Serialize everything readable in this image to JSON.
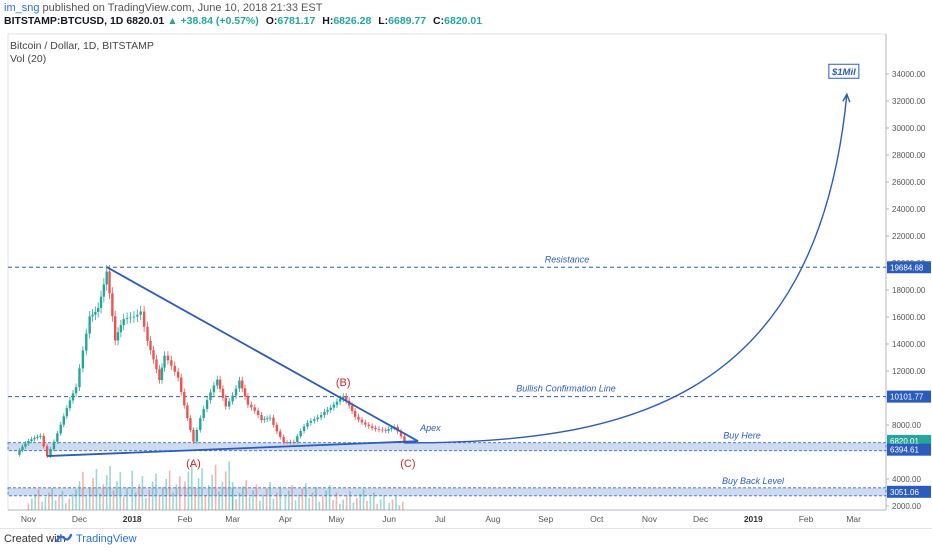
{
  "header": {
    "user": "im_sng",
    "published": "published on TradingView.com, June 10, 2018 21:33 EST",
    "symbol": "BITSTAMP:BTCUSD, 1D",
    "last": "6820.01",
    "arrow": "▲",
    "change": "+38.84 (+0.57%)",
    "o_label": "O:",
    "o_value": "6781.17",
    "h_label": "H:",
    "h_value": "6826.28",
    "l_label": "L:",
    "l_value": "6689.77",
    "c_label": "C:",
    "c_value": "6820.01"
  },
  "legend": {
    "title": "Bitcoin / Dollar, 1D, BITSTAMP",
    "vol": "Vol (20)"
  },
  "footer": {
    "created": "Created with",
    "brand": "TradingView",
    "logo_icon": "tradingview-logo-icon"
  },
  "chart_data": {
    "type": "candlestick",
    "title": "Bitcoin / Dollar, 1D, BITSTAMP",
    "x_tick_labels": [
      "Nov",
      "Dec",
      "2018",
      "Feb",
      "Mar",
      "Apr",
      "May",
      "Jun",
      "Jul",
      "Aug",
      "Sep",
      "Oct",
      "Nov",
      "Dec",
      "2019",
      "Feb",
      "Mar"
    ],
    "y_tick_values": [
      2000,
      4000,
      8000,
      10000,
      12000,
      14000,
      16000,
      18000,
      20000,
      22000,
      24000,
      26000,
      28000,
      30000,
      32000,
      34000
    ],
    "y_tick_labels": [
      "2000.00",
      "4000.00",
      "8000.00",
      "10000.00",
      "12000.00",
      "14000.00",
      "16000.00",
      "18000.00",
      "20000.00",
      "22000.00",
      "24000.00",
      "26000.00",
      "28000.00",
      "30000.00",
      "32000.00",
      "34000.00"
    ],
    "ylim": [
      1000,
      35000
    ],
    "price_path": [
      [
        "2017-10-25",
        5800
      ],
      [
        "2017-11-01",
        6600
      ],
      [
        "2017-11-08",
        7300
      ],
      [
        "2017-11-12",
        5900
      ],
      [
        "2017-11-20",
        8000
      ],
      [
        "2017-11-29",
        10500
      ],
      [
        "2017-12-07",
        16500
      ],
      [
        "2017-12-12",
        17200
      ],
      [
        "2017-12-17",
        19300
      ],
      [
        "2017-12-22",
        13800
      ],
      [
        "2017-12-27",
        15500
      ],
      [
        "2018-01-06",
        17000
      ],
      [
        "2018-01-10",
        14500
      ],
      [
        "2018-01-17",
        11000
      ],
      [
        "2018-01-20",
        12700
      ],
      [
        "2018-01-28",
        11700
      ],
      [
        "2018-02-06",
        6900
      ],
      [
        "2018-02-10",
        8400
      ],
      [
        "2018-02-20",
        11200
      ],
      [
        "2018-02-25",
        9600
      ],
      [
        "2018-03-05",
        11500
      ],
      [
        "2018-03-10",
        9300
      ],
      [
        "2018-03-18",
        8200
      ],
      [
        "2018-03-23",
        8700
      ],
      [
        "2018-03-31",
        6900
      ],
      [
        "2018-04-06",
        6600
      ],
      [
        "2018-04-14",
        8000
      ],
      [
        "2018-04-24",
        9300
      ],
      [
        "2018-05-05",
        9800
      ],
      [
        "2018-05-12",
        8500
      ],
      [
        "2018-05-20",
        8200
      ],
      [
        "2018-05-30",
        7400
      ],
      [
        "2018-06-04",
        7600
      ],
      [
        "2018-06-10",
        6820
      ]
    ],
    "volume": [
      [
        "2017-11",
        1400
      ],
      [
        "2017-12",
        2800
      ],
      [
        "2018-01",
        2500
      ],
      [
        "2018-02",
        3100
      ],
      [
        "2018-03",
        1900
      ],
      [
        "2018-04",
        1700
      ],
      [
        "2018-05",
        1300
      ],
      [
        "2018-06",
        1000
      ]
    ],
    "projection": {
      "from": [
        "2018-06-10",
        6820
      ],
      "to": [
        "2019-02-25",
        32500
      ],
      "label": "$1Mil"
    },
    "lines": [
      {
        "name": "Resistance",
        "value": 19684.68,
        "price_label": "19684.68",
        "style": "dashed"
      },
      {
        "name": "Bullish Confirmation Line",
        "value": 10101.77,
        "price_label": "10101.77",
        "style": "dashed"
      },
      {
        "name": "",
        "value": 6820.01,
        "price_label": "6820.01",
        "style": "price"
      },
      {
        "name": "Buy Here",
        "value": 6394.61,
        "price_label": "6394.61",
        "style": "band"
      },
      {
        "name": "Buy Back Level",
        "value": 3051.06,
        "price_label": "3051.06",
        "style": "band"
      }
    ],
    "triangle": {
      "upper": [
        [
          "2017-12-17",
          19700
        ],
        [
          "2018-06-18",
          6800
        ]
      ],
      "lower": [
        [
          "2017-11-12",
          5700
        ],
        [
          "2018-06-18",
          6800
        ]
      ],
      "apex_label": "Apex"
    },
    "wave_labels": [
      {
        "text": "(A)",
        "date": "2018-02-06",
        "price": 4900
      },
      {
        "text": "(B)",
        "date": "2018-05-05",
        "price": 10900
      },
      {
        "text": "(C)",
        "date": "2018-06-12",
        "price": 4900
      }
    ],
    "colors": {
      "up": "#26a69a",
      "down": "#ef5350",
      "annotation": "#2a5bbd",
      "wave": "#c62828",
      "band": "#c9d8ee",
      "price_tag": "#26a69a"
    },
    "grid": false,
    "legend_position": "top-left"
  }
}
